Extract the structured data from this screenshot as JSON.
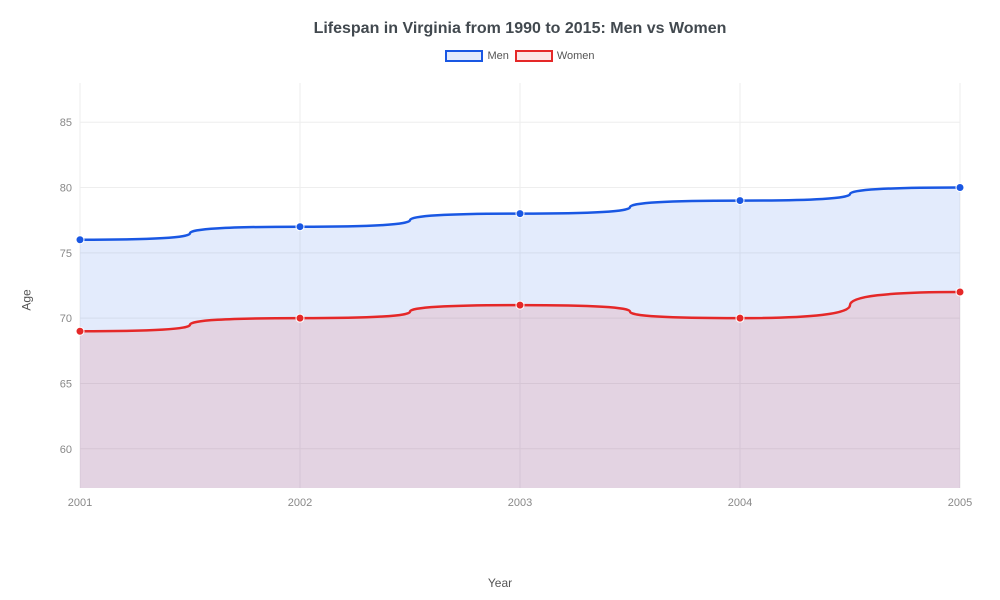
{
  "chart": {
    "type": "line-area",
    "title": "Lifespan in Virginia from 1990 to 2015: Men vs Women",
    "title_fontsize": 16,
    "title_color": "#42494f",
    "xlabel": "Year",
    "ylabel": "Age",
    "label_fontsize": 12,
    "label_color": "#555555",
    "background_color": "#ffffff",
    "plot_background": "#ffffff",
    "grid_color": "#eeeeee",
    "axis_line_color": "#cccccc",
    "tick_label_color": "#888888",
    "tick_fontsize": 11,
    "x_categories": [
      "2001",
      "2002",
      "2003",
      "2004",
      "2005"
    ],
    "ylim": [
      57,
      88
    ],
    "yticks": [
      60,
      65,
      70,
      75,
      80,
      85
    ],
    "line_width": 2.5,
    "marker_radius": 4,
    "marker_style": "circle",
    "series": [
      {
        "name": "Men",
        "values": [
          76,
          77,
          78,
          79,
          80
        ],
        "line_color": "#1957e3",
        "fill_color": "#1957e3",
        "fill_opacity": 0.12
      },
      {
        "name": "Women",
        "values": [
          69,
          70,
          71,
          70,
          72
        ],
        "line_color": "#e52828",
        "fill_color": "#e52828",
        "fill_opacity": 0.12
      }
    ],
    "legend": {
      "position": "top-center",
      "swatch_width": 38,
      "swatch_height": 12
    }
  }
}
